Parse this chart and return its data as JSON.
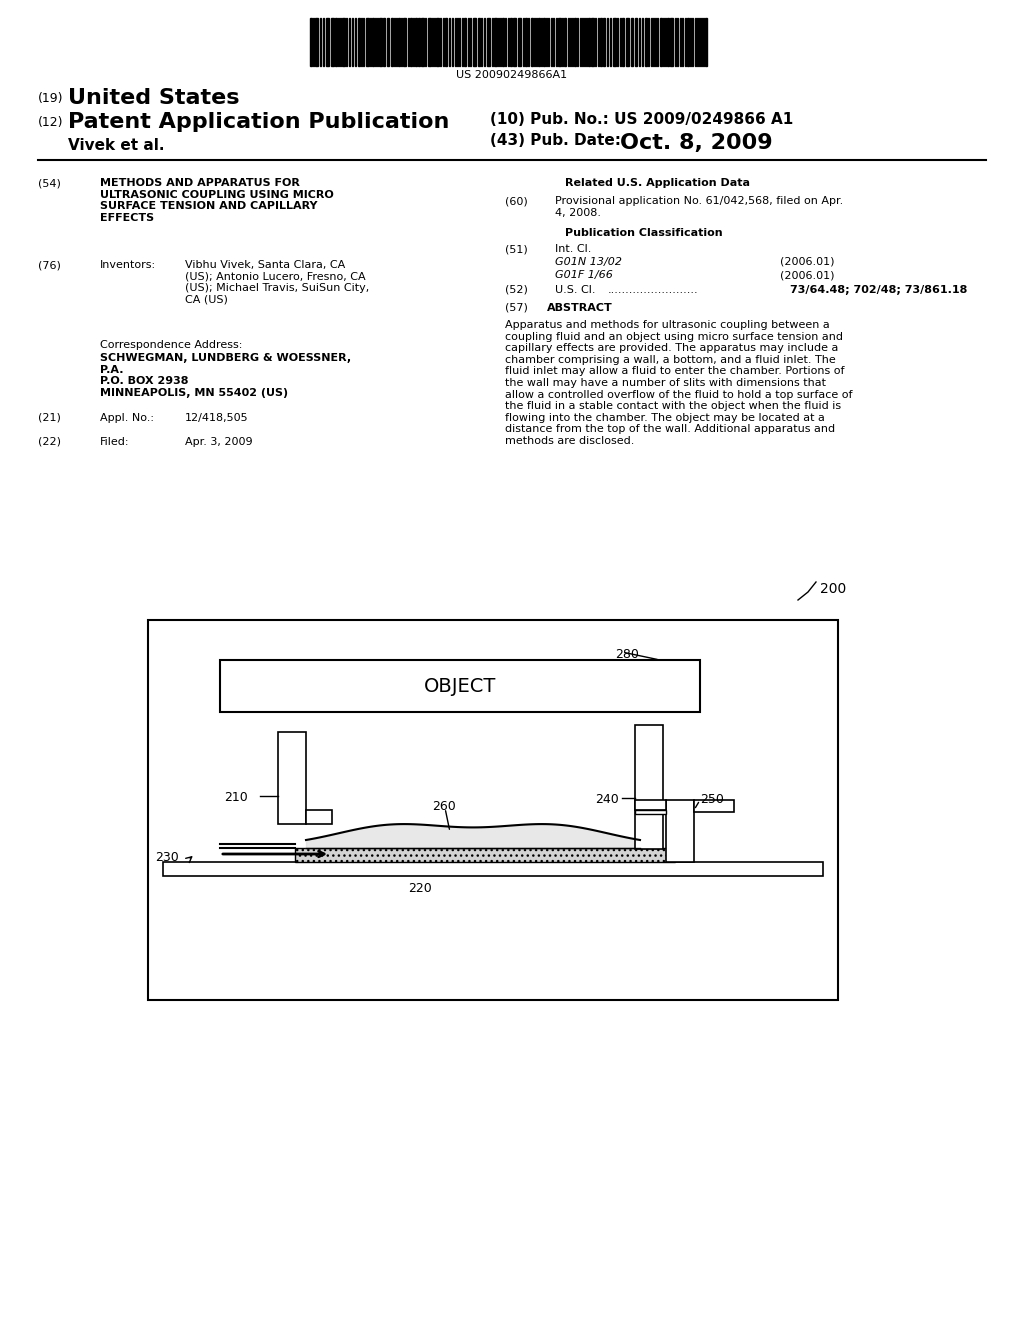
{
  "bg_color": "#ffffff",
  "barcode_text": "US 20090249866A1",
  "title_19": "(19)",
  "title_us": "United States",
  "title_12": "(12)",
  "title_pat": "Patent Application Publication",
  "title_10": "(10) Pub. No.: US 2009/0249866 A1",
  "title_author": "Vivek et al.",
  "title_43": "(43) Pub. Date:",
  "title_date": "Oct. 8, 2009",
  "field_54_label": "(54)",
  "field_54_text": "METHODS AND APPARATUS FOR\nULTRASONIC COUPLING USING MICRO\nSURFACE TENSION AND CAPILLARY\nEFFECTS",
  "field_76_label": "(76)",
  "field_76_title": "Inventors:",
  "field_76_text": "Vibhu Vivek, Santa Clara, CA\n(US); Antonio Lucero, Fresno, CA\n(US); Michael Travis, SuiSun City,\nCA (US)",
  "corr_title": "Correspondence Address:",
  "corr_text": "SCHWEGMAN, LUNDBERG & WOESSNER,\nP.A.\nP.O. BOX 2938\nMINNEAPOLIS, MN 55402 (US)",
  "field_21_label": "(21)",
  "field_21_title": "Appl. No.:",
  "field_21_text": "12/418,505",
  "field_22_label": "(22)",
  "field_22_title": "Filed:",
  "field_22_text": "Apr. 3, 2009",
  "related_title": "Related U.S. Application Data",
  "field_60_label": "(60)",
  "field_60_text": "Provisional application No. 61/042,568, filed on Apr.\n4, 2008.",
  "pub_class_title": "Publication Classification",
  "field_51_label": "(51)",
  "field_51_title": "Int. Cl.",
  "field_51_a": "G01N 13/02",
  "field_51_a_date": "(2006.01)",
  "field_51_b": "G01F 1/66",
  "field_51_b_date": "(2006.01)",
  "field_52_label": "(52)",
  "field_52_title": "U.S. Cl.",
  "field_52_text": "73/64.48; 702/48; 73/861.18",
  "field_57_label": "(57)",
  "field_57_title": "ABSTRACT",
  "abstract_text": "Apparatus and methods for ultrasonic coupling between a\ncoupling fluid and an object using micro surface tension and\ncapillary effects are provided. The apparatus may include a\nchamber comprising a wall, a bottom, and a fluid inlet. The\nfluid inlet may allow a fluid to enter the chamber. Portions of\nthe wall may have a number of slits with dimensions that\nallow a controlled overflow of the fluid to hold a top surface of\nthe fluid in a stable contact with the object when the fluid is\nflowing into the chamber. The object may be located at a\ndistance from the top of the wall. Additional apparatus and\nmethods are disclosed.",
  "diagram_label": "200",
  "label_280": "280",
  "label_260": "260",
  "label_240": "240",
  "label_250": "250",
  "label_210": "210",
  "label_230": "230",
  "label_220": "220",
  "object_text": "OBJECT"
}
